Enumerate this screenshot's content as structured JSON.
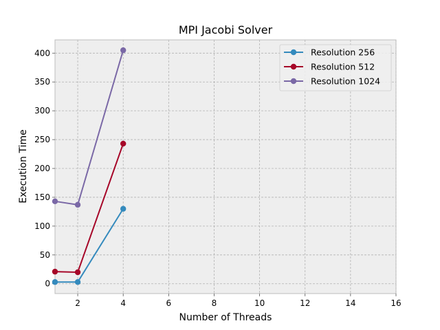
{
  "chart_data": {
    "type": "line",
    "title": "MPI Jacobi Solver",
    "xlabel": "Number of Threads",
    "ylabel": "Execution Time",
    "xlim": [
      1,
      16
    ],
    "ylim": [
      -17,
      423
    ],
    "x_ticks": [
      2,
      4,
      6,
      8,
      10,
      12,
      14,
      16
    ],
    "y_ticks": [
      0,
      50,
      100,
      150,
      200,
      250,
      300,
      350,
      400
    ],
    "grid": true,
    "legend_position": "top-right",
    "series": [
      {
        "name": "Resolution 256",
        "color": "#348abd",
        "x": [
          1,
          2,
          4
        ],
        "y": [
          3,
          3,
          130
        ]
      },
      {
        "name": "Resolution 512",
        "color": "#a60628",
        "x": [
          1,
          2,
          4
        ],
        "y": [
          21,
          20,
          243
        ]
      },
      {
        "name": "Resolution 1024",
        "color": "#7a68a6",
        "x": [
          1,
          2,
          4
        ],
        "y": [
          143,
          137,
          405
        ]
      }
    ]
  }
}
